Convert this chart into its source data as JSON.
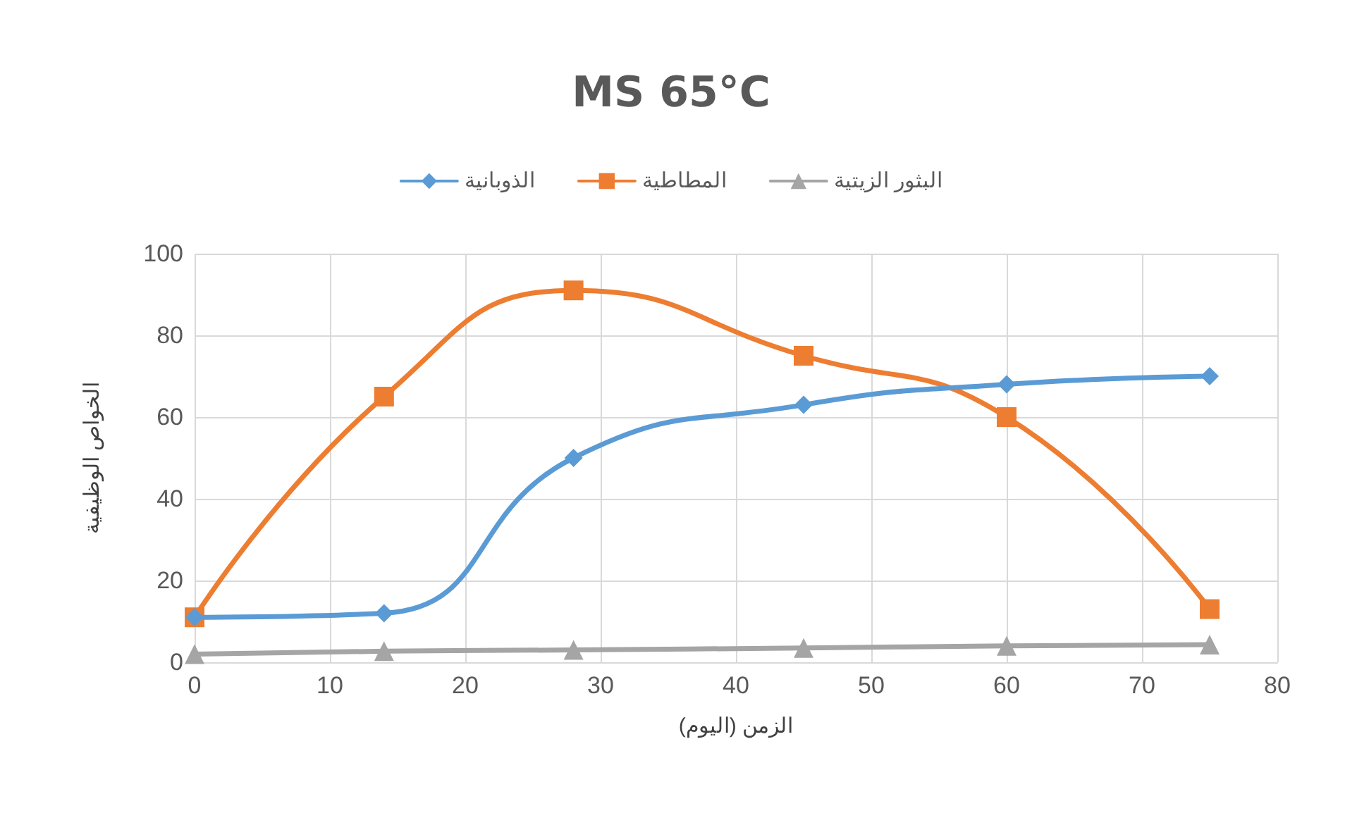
{
  "chart_data": {
    "type": "line",
    "title": "MS 65°C",
    "xlabel": "الزمن (اليوم)",
    "ylabel": "الخواص الوظيفية",
    "x": [
      0,
      14,
      28,
      45,
      60,
      75
    ],
    "series": [
      {
        "name": "الذوبانية",
        "color": "#5b9bd5",
        "marker": "diamond",
        "values": [
          11,
          12,
          50,
          63,
          68,
          70
        ]
      },
      {
        "name": "المطاطية",
        "color": "#ed7d31",
        "marker": "square",
        "values": [
          11,
          65,
          91,
          75,
          60,
          13
        ]
      },
      {
        "name": "البثور الزيتية",
        "color": "#a5a5a5",
        "marker": "triangle",
        "values": [
          2,
          2.7,
          3,
          3.5,
          4,
          4.3
        ]
      }
    ],
    "xlim": [
      0,
      80
    ],
    "xticks": [
      0,
      10,
      20,
      30,
      40,
      50,
      60,
      70,
      80
    ],
    "ylim": [
      0,
      100
    ],
    "yticks": [
      0,
      20,
      40,
      60,
      80,
      100
    ],
    "grid": true,
    "legend": "top",
    "line_style": "solid"
  }
}
